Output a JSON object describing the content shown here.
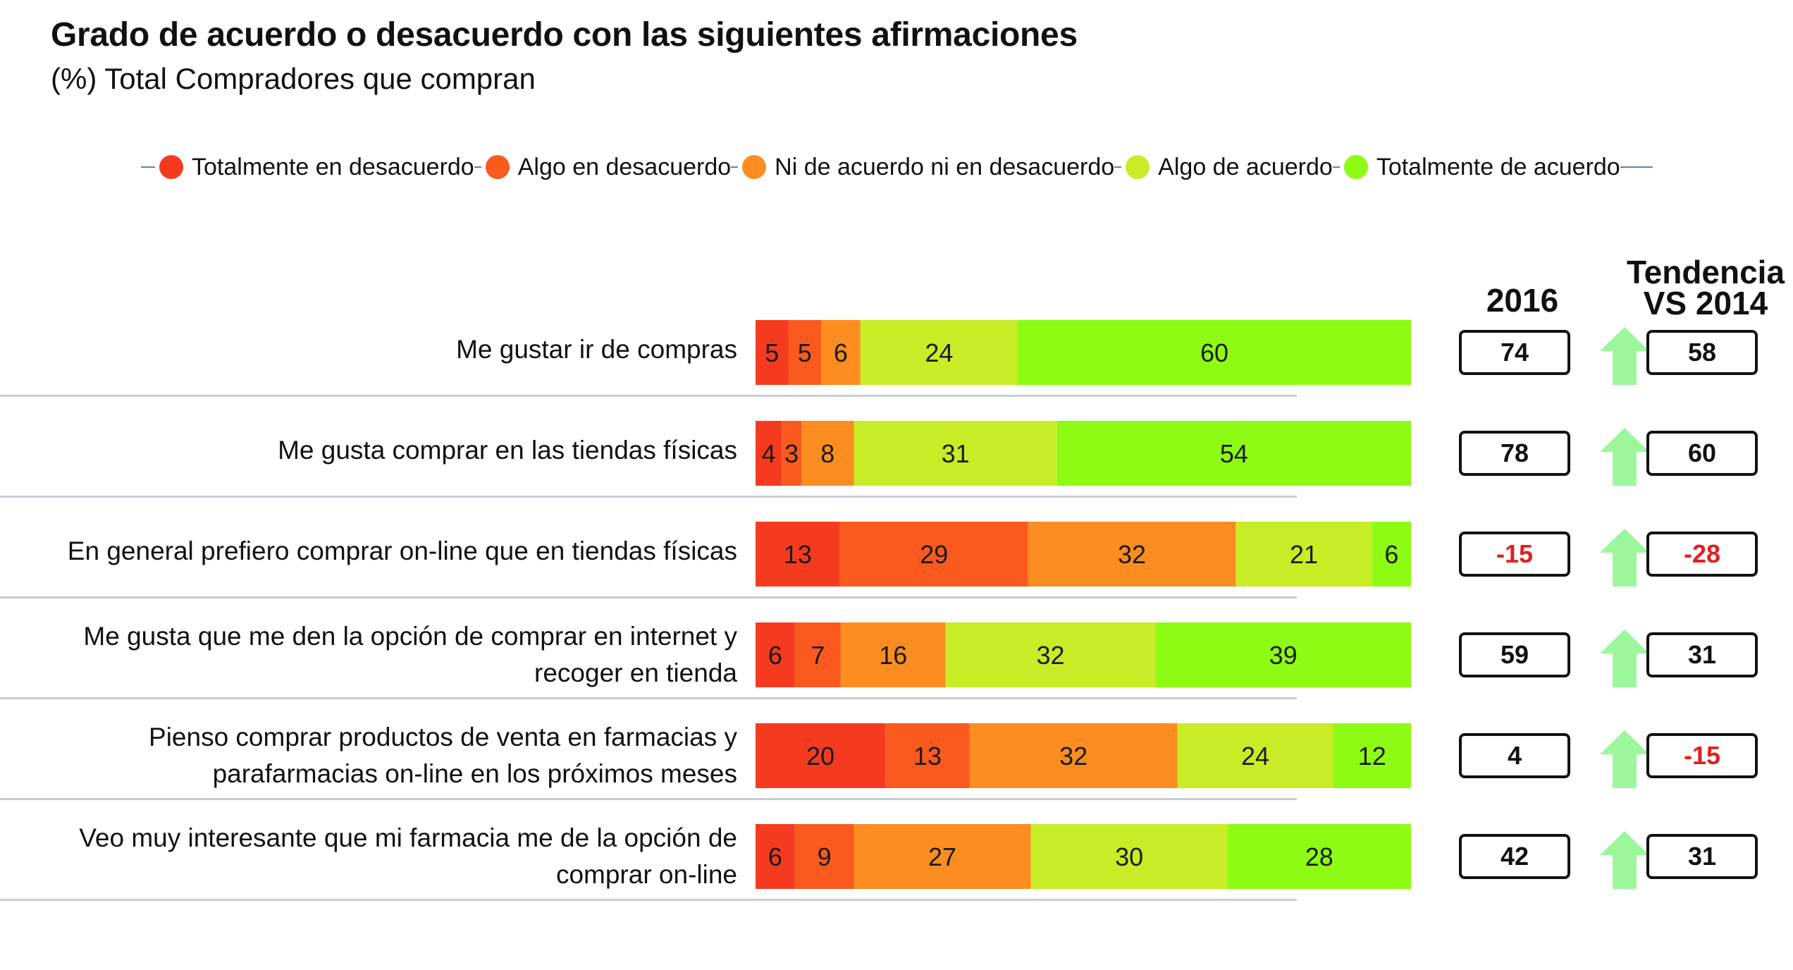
{
  "title": "Grado de acuerdo o desacuerdo con las siguientes  afirmaciones",
  "subtitle": "(%) Total Compradores  que compran",
  "legend": [
    {
      "label": "Totalmente en desacuerdo",
      "color": "#f53b1f"
    },
    {
      "label": "Algo  en desacuerdo",
      "color": "#fb5a1e"
    },
    {
      "label": "Ni de acuerdo ni en desacuerdo",
      "color": "#fc8d21"
    },
    {
      "label": "Algo de acuerdo",
      "color": "#c8ec26"
    },
    {
      "label": "Totalmente de acuerdo",
      "color": "#8dfb13"
    }
  ],
  "column_headers": {
    "year": "2016",
    "trend": "Tendencia VS 2014",
    "trend_line1": "Tendencia",
    "trend_line2": "VS 2014"
  },
  "trend_arrow": {
    "icon": "up-arrow-icon",
    "color": "#9cf79c"
  },
  "chart_data": {
    "type": "bar",
    "orientation": "horizontal",
    "stacked": true,
    "categories": [
      "Me gustar ir de compras",
      "Me gusta comprar en las tiendas físicas",
      "En general prefiero comprar on-line que en tiendas físicas",
      "Me gusta que me den la opción de comprar en internet y recoger en tienda",
      "Pienso comprar productos de venta en farmacias y parafarmacias on-line en los próximos meses",
      "Veo muy interesante que mi farmacia me de la opción de comprar on-line"
    ],
    "category_lines": [
      [
        "Me gustar ir de compras"
      ],
      [
        "Me gusta comprar en las tiendas físicas"
      ],
      [
        "En general prefiero comprar on-line que en tiendas físicas"
      ],
      [
        "Me gusta que me den la opción de comprar en internet y",
        "recoger en tienda"
      ],
      [
        "Pienso comprar productos de venta en farmacias y",
        "parafarmacias on-line en los próximos meses"
      ],
      [
        "Veo muy interesante que mi farmacia me de la opción de",
        "comprar on-line"
      ]
    ],
    "series": [
      {
        "name": "Totalmente en desacuerdo",
        "values": [
          5,
          4,
          13,
          6,
          20,
          6
        ]
      },
      {
        "name": "Algo  en desacuerdo",
        "values": [
          5,
          3,
          29,
          7,
          13,
          9
        ]
      },
      {
        "name": "Ni de acuerdo ni en desacuerdo",
        "values": [
          6,
          8,
          32,
          16,
          32,
          27
        ]
      },
      {
        "name": "Algo de acuerdo",
        "values": [
          24,
          31,
          21,
          32,
          24,
          30
        ]
      },
      {
        "name": "Totalmente de acuerdo",
        "values": [
          60,
          54,
          6,
          39,
          12,
          28
        ]
      }
    ],
    "values_2016": [
      "74",
      "78",
      "-15",
      "59",
      "4",
      "42"
    ],
    "trend_vs_2014": [
      "58",
      "60",
      "-28",
      "31",
      "-15",
      "31"
    ],
    "xlim": [
      0,
      100
    ],
    "legend_position": "top"
  }
}
